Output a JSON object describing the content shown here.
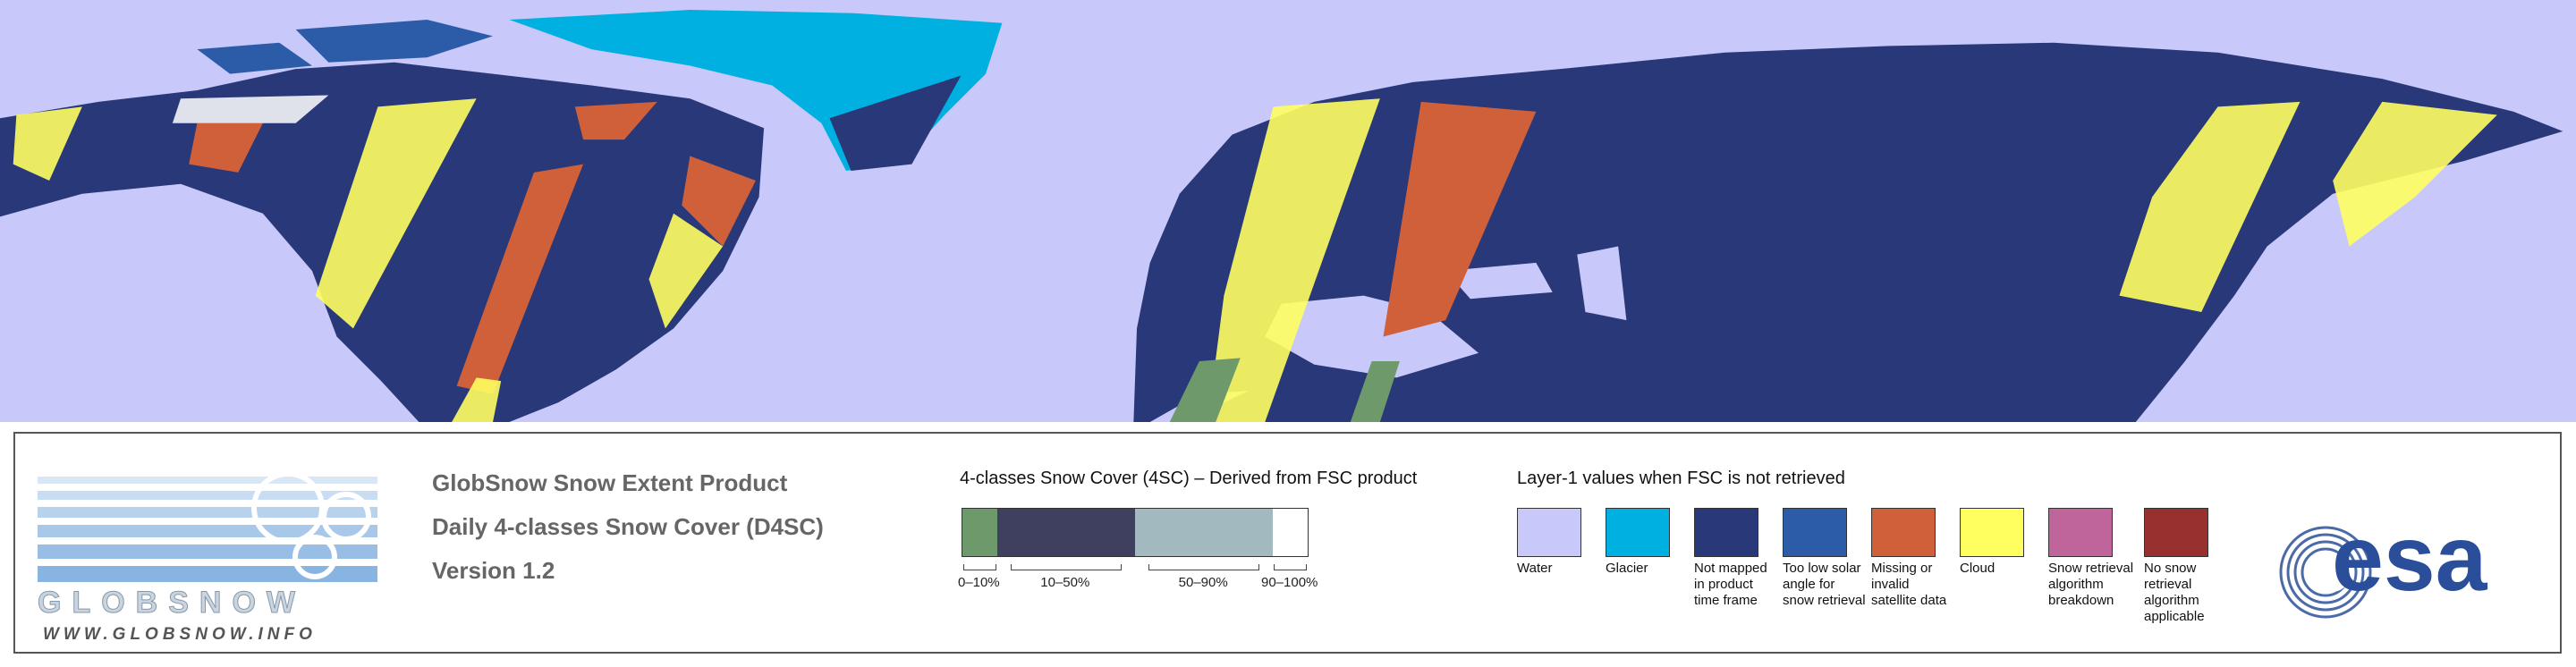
{
  "logo": {
    "wordmark": "GLOBSNOW",
    "url": "WWW.GLOBSNOW.INFO"
  },
  "product": {
    "lines": [
      "GlobSnow Snow Extent Product",
      "Daily 4-classes Snow Cover (D4SC)",
      "Version 1.2"
    ]
  },
  "snow_cover_legend": {
    "title": "4-classes Snow Cover (4SC) – Derived from FSC product",
    "classes": [
      {
        "label": "0–10%",
        "color": "#6e9a6b"
      },
      {
        "label": "10–50%",
        "color": "#3f3f5f"
      },
      {
        "label": "50–90%",
        "color": "#a2b9bf"
      },
      {
        "label": "90–100%",
        "color": "#ffffff"
      }
    ]
  },
  "layer1_legend": {
    "title": "Layer-1 values when FSC is not retrieved",
    "items": [
      {
        "label": "Water",
        "color": "#c8c8fa"
      },
      {
        "label": "Glacier",
        "color": "#00b0e0"
      },
      {
        "label": "Not mapped in product time frame",
        "color": "#283878"
      },
      {
        "label": "Too low solar angle for snow retrieval",
        "color": "#2c5ca8"
      },
      {
        "label": "Missing or invalid satellite data",
        "color": "#d0603a"
      },
      {
        "label": "Cloud",
        "color": "#ffff60"
      },
      {
        "label": "Snow retrieval algorithm breakdown",
        "color": "#c0649c"
      },
      {
        "label": "No snow retrieval algorithm applicable",
        "color": "#983030"
      }
    ]
  },
  "esa_logo": "esa"
}
